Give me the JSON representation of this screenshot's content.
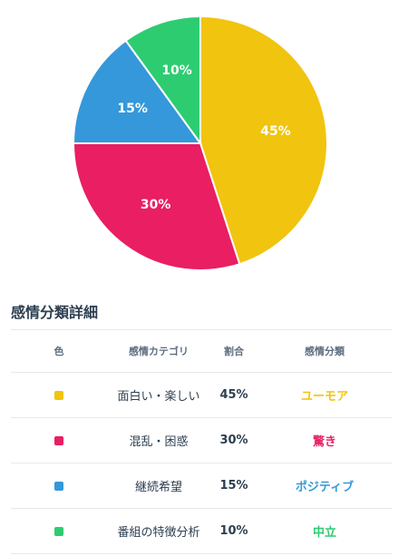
{
  "chart_data": {
    "type": "pie",
    "start_angle_deg": 0,
    "direction": "clockwise",
    "slices": [
      {
        "label": "面白い・楽しい",
        "value": 45,
        "label_text": "45%",
        "color": "#f1c40f"
      },
      {
        "label": "混乱・困惑",
        "value": 30,
        "label_text": "30%",
        "color": "#e91e63"
      },
      {
        "label": "継続希望",
        "value": 15,
        "label_text": "15%",
        "color": "#3498db"
      },
      {
        "label": "番組の特徴分析",
        "value": 10,
        "label_text": "10%",
        "color": "#2ecc71"
      }
    ]
  },
  "detail": {
    "title": "感情分類詳細",
    "headers": {
      "color": "色",
      "category": "感情カテゴリ",
      "ratio": "割合",
      "sentiment": "感情分類"
    },
    "rows": [
      {
        "category": "面白い・楽しい",
        "ratio": "45%",
        "sentiment": "ユーモア",
        "color": "#f1c40f",
        "sentiment_color": "#f1c40f"
      },
      {
        "category": "混乱・困惑",
        "ratio": "30%",
        "sentiment": "驚き",
        "color": "#e91e63",
        "sentiment_color": "#e91e63"
      },
      {
        "category": "継続希望",
        "ratio": "15%",
        "sentiment": "ポジティブ",
        "color": "#3498db",
        "sentiment_color": "#3498db"
      },
      {
        "category": "番組の特徴分析",
        "ratio": "10%",
        "sentiment": "中立",
        "color": "#2ecc71",
        "sentiment_color": "#2ecc71"
      }
    ]
  }
}
